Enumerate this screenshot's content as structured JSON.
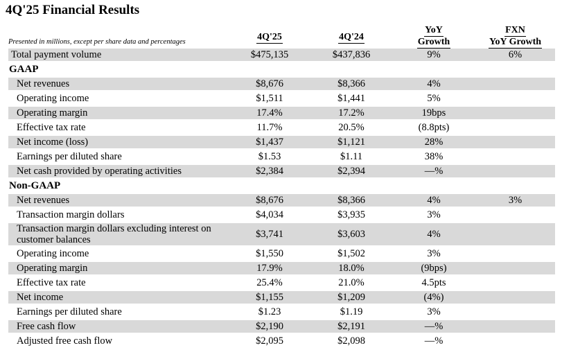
{
  "title": "4Q'25 Financial Results",
  "colors": {
    "row_shade": "#d9d9d9",
    "text": "#000000",
    "background": "#ffffff"
  },
  "table": {
    "note": "Presented in millions, except per share data and percentages",
    "columns": [
      {
        "id": "q25",
        "lines": [
          "4Q'25"
        ]
      },
      {
        "id": "q24",
        "lines": [
          "4Q'24"
        ]
      },
      {
        "id": "yoy",
        "lines": [
          "YoY",
          "Growth"
        ]
      },
      {
        "id": "fxn",
        "lines": [
          "FXN",
          "YoY Growth"
        ]
      }
    ],
    "rows": [
      {
        "kind": "data",
        "shaded": true,
        "top": true,
        "label": "Total payment volume",
        "q25": "$475,135",
        "q24": "$437,836",
        "yoy": "9%",
        "fxn": "6%"
      },
      {
        "kind": "section",
        "label": "GAAP"
      },
      {
        "kind": "data",
        "shaded": true,
        "label": "Net revenues",
        "q25": "$8,676",
        "q24": "$8,366",
        "yoy": "4%",
        "fxn": ""
      },
      {
        "kind": "data",
        "shaded": false,
        "label": "Operating income",
        "q25": "$1,511",
        "q24": "$1,441",
        "yoy": "5%",
        "fxn": ""
      },
      {
        "kind": "data",
        "shaded": true,
        "label": "Operating margin",
        "q25": "17.4%",
        "q24": "17.2%",
        "yoy": "19bps",
        "fxn": ""
      },
      {
        "kind": "data",
        "shaded": false,
        "label": "Effective tax rate",
        "q25": "11.7%",
        "q24": "20.5%",
        "yoy": "(8.8pts)",
        "fxn": ""
      },
      {
        "kind": "data",
        "shaded": true,
        "label": "Net income (loss)",
        "q25": "$1,437",
        "q24": "$1,121",
        "yoy": "28%",
        "fxn": ""
      },
      {
        "kind": "data",
        "shaded": false,
        "label": "Earnings per diluted share",
        "q25": "$1.53",
        "q24": "$1.11",
        "yoy": "38%",
        "fxn": ""
      },
      {
        "kind": "data",
        "shaded": true,
        "label": "Net cash provided by operating activities",
        "q25": "$2,384",
        "q24": "$2,394",
        "yoy": "—%",
        "fxn": ""
      },
      {
        "kind": "section",
        "label": "Non-GAAP"
      },
      {
        "kind": "data",
        "shaded": true,
        "label": "Net revenues",
        "q25": "$8,676",
        "q24": "$8,366",
        "yoy": "4%",
        "fxn": "3%"
      },
      {
        "kind": "data",
        "shaded": false,
        "label": "Transaction margin dollars",
        "q25": "$4,034",
        "q24": "$3,935",
        "yoy": "3%",
        "fxn": ""
      },
      {
        "kind": "data",
        "shaded": true,
        "tall": true,
        "label": "Transaction margin dollars excluding interest on customer balances",
        "q25": "$3,741",
        "q24": "$3,603",
        "yoy": "4%",
        "fxn": ""
      },
      {
        "kind": "data",
        "shaded": false,
        "label": "Operating income",
        "q25": "$1,550",
        "q24": "$1,502",
        "yoy": "3%",
        "fxn": ""
      },
      {
        "kind": "data",
        "shaded": true,
        "label": "Operating margin",
        "q25": "17.9%",
        "q24": "18.0%",
        "yoy": "(9bps)",
        "fxn": ""
      },
      {
        "kind": "data",
        "shaded": false,
        "label": "Effective tax rate",
        "q25": "25.4%",
        "q24": "21.0%",
        "yoy": "4.5pts",
        "fxn": ""
      },
      {
        "kind": "data",
        "shaded": true,
        "label": "Net income",
        "q25": "$1,155",
        "q24": "$1,209",
        "yoy": "(4%)",
        "fxn": ""
      },
      {
        "kind": "data",
        "shaded": false,
        "label": "Earnings per diluted share",
        "q25": "$1.23",
        "q24": "$1.19",
        "yoy": "3%",
        "fxn": ""
      },
      {
        "kind": "data",
        "shaded": true,
        "label": "Free cash flow",
        "q25": "$2,190",
        "q24": "$2,191",
        "yoy": "—%",
        "fxn": ""
      },
      {
        "kind": "data",
        "shaded": false,
        "label": "Adjusted free cash flow",
        "q25": "$2,095",
        "q24": "$2,098",
        "yoy": "—%",
        "fxn": ""
      }
    ]
  }
}
